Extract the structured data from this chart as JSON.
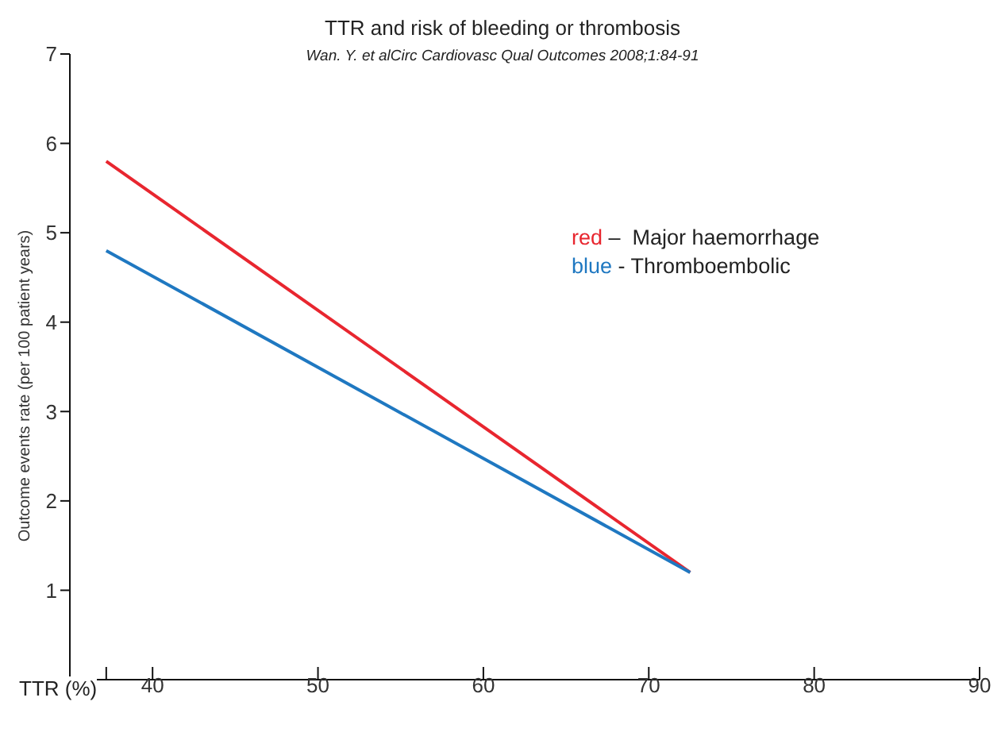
{
  "chart_data": {
    "type": "line",
    "title": "TTR and risk of bleeding or thrombosis",
    "subtitle": "Wan. Y. et alCirc Cardiovasc Qual Outcomes 2008;1:84-91",
    "xlabel": "TTR (%)",
    "ylabel": "Outcome events rate (per 100 patient years)",
    "x": [
      37.2,
      72.5
    ],
    "series": [
      {
        "name": "red –  Major haemorrhage",
        "color": "#e8262f",
        "values": [
          5.8,
          1.2
        ]
      },
      {
        "name": "blue - Thromboembolic",
        "color": "#1f78c1",
        "values": [
          4.8,
          1.2
        ]
      }
    ],
    "xlim": [
      35,
      90
    ],
    "xticks": [
      {
        "value": 37.2,
        "label": null
      },
      40,
      50,
      60,
      70,
      80,
      90
    ],
    "ylim": [
      0,
      7
    ],
    "yticks": [
      1,
      2,
      3,
      4,
      5,
      6,
      7
    ],
    "legend": "top right",
    "marker": "none",
    "line_style": "solid"
  }
}
